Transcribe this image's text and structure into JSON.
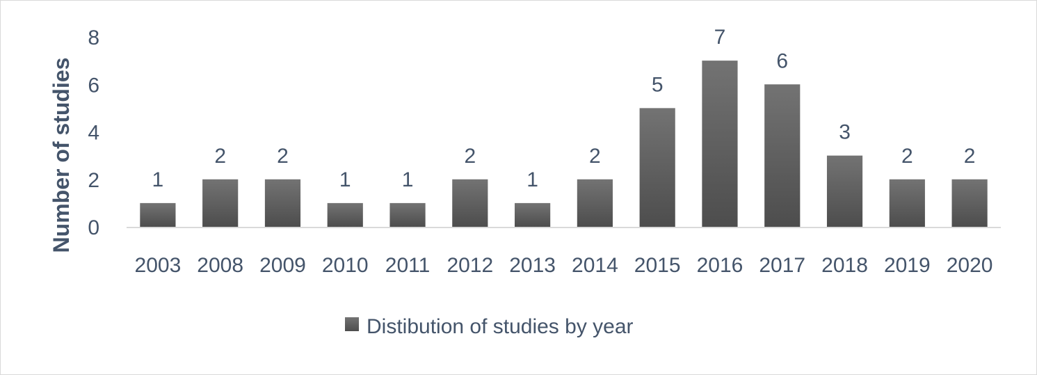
{
  "chart_data": {
    "type": "bar",
    "categories": [
      "2003",
      "2008",
      "2009",
      "2010",
      "2011",
      "2012",
      "2013",
      "2014",
      "2015",
      "2016",
      "2017",
      "2018",
      "2019",
      "2020"
    ],
    "series": [
      {
        "name": "Distibution of studies by year",
        "values": [
          1,
          2,
          2,
          1,
          1,
          2,
          1,
          2,
          5,
          7,
          6,
          3,
          2,
          2
        ],
        "color": "#5f5f5f"
      }
    ],
    "title": "",
    "xlabel": "",
    "ylabel": "Number of studies",
    "ylim": [
      0,
      8
    ],
    "yticks": [
      0,
      2,
      4,
      6,
      8
    ],
    "grid": false,
    "data_labels": true,
    "legend_position": "bottom",
    "colors": {
      "bar_top": "#737373",
      "bar_bottom": "#4d4d4d",
      "text": "#44546a",
      "axis": "#d9d9d9"
    }
  }
}
